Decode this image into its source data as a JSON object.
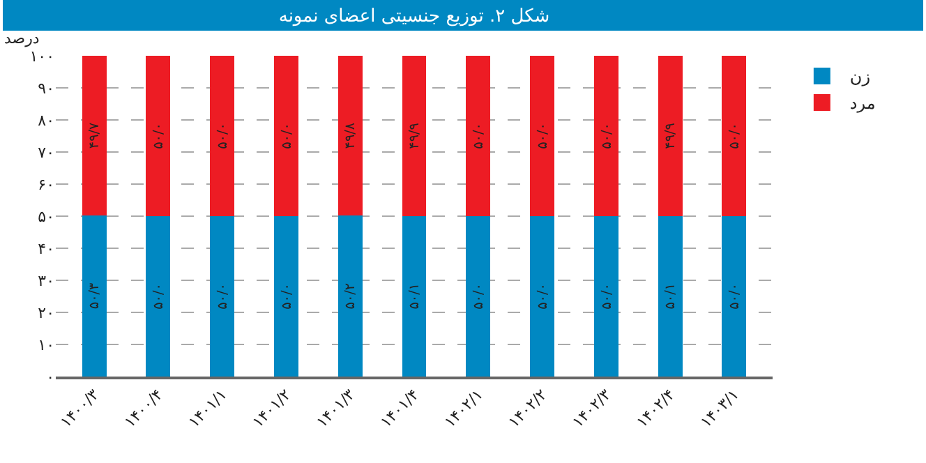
{
  "chart_data": {
    "type": "bar",
    "stacked": true,
    "title": "شکل ۲. توزیع جنسیتی اعضای نمونه",
    "ylabel": "درصد",
    "categories": [
      "۱۴۰۰/۳",
      "۱۴۰۰/۴",
      "۱۴۰۱/۱",
      "۱۴۰۱/۲",
      "۱۴۰۱/۳",
      "۱۴۰۱/۴",
      "۱۴۰۲/۱",
      "۱۴۰۲/۲",
      "۱۴۰۲/۳",
      "۱۴۰۲/۴",
      "۱۴۰۳/۱"
    ],
    "series": [
      {
        "name": "زن",
        "color": "#0088c2",
        "values": [
          50.3,
          50.0,
          50.0,
          50.0,
          50.2,
          50.1,
          50.0,
          50.0,
          50.0,
          50.1,
          50.0
        ],
        "value_labels": [
          "۵۰/۳",
          "۵۰/۰",
          "۵۰/۰",
          "۵۰/۰",
          "۵۰/۲",
          "۵۰/۱",
          "۵۰/۰",
          "۵۰/۰",
          "۵۰/۰",
          "۵۰/۱",
          "۵۰/۰"
        ]
      },
      {
        "name": "مرد",
        "color": "#ed1c24",
        "values": [
          49.7,
          50.0,
          50.0,
          50.0,
          49.8,
          49.9,
          50.0,
          50.0,
          50.0,
          49.9,
          50.0
        ],
        "value_labels": [
          "۴۹/۷",
          "۵۰/۰",
          "۵۰/۰",
          "۵۰/۰",
          "۴۹/۸",
          "۴۹/۹",
          "۵۰/۰",
          "۵۰/۰",
          "۵۰/۰",
          "۴۹/۹",
          "۵۰/۰"
        ]
      }
    ],
    "ylim": [
      0,
      100
    ],
    "yticks": [
      {
        "value": 0,
        "label": "۰"
      },
      {
        "value": 10,
        "label": "۱۰"
      },
      {
        "value": 20,
        "label": "۲۰"
      },
      {
        "value": 30,
        "label": "۳۰"
      },
      {
        "value": 40,
        "label": "۴۰"
      },
      {
        "value": 50,
        "label": "۵۰"
      },
      {
        "value": 60,
        "label": "۶۰"
      },
      {
        "value": 70,
        "label": "۷۰"
      },
      {
        "value": 80,
        "label": "۸۰"
      },
      {
        "value": 90,
        "label": "۹۰"
      },
      {
        "value": 100,
        "label": "۱۰۰"
      }
    ],
    "grid": "y",
    "legend": "top right"
  }
}
